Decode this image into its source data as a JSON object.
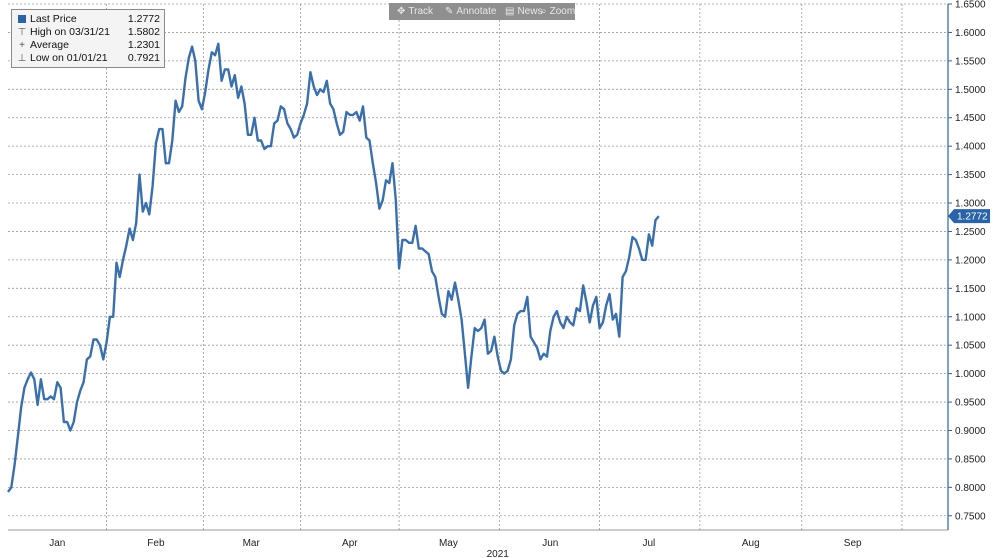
{
  "legend": {
    "items": [
      {
        "icon": "square-icon",
        "name": "Last Price",
        "value": "1.2772"
      },
      {
        "icon": "high-marker-icon",
        "name": "High on 03/31/21",
        "value": "1.5802"
      },
      {
        "icon": "average-marker-icon",
        "name": "Average",
        "value": "1.2301"
      },
      {
        "icon": "low-marker-icon",
        "name": "Low on 01/01/21",
        "value": "0.7921"
      }
    ]
  },
  "toolbar": {
    "items": [
      {
        "icon": "track-icon",
        "label": "Track"
      },
      {
        "icon": "annotate-icon",
        "label": "Annotate"
      },
      {
        "icon": "news-icon",
        "label": "News"
      },
      {
        "icon": "zoom-icon",
        "label": "Zoom"
      }
    ]
  },
  "colors": {
    "line": "#3a6fae",
    "grid": "#9a9a9a",
    "axis": "#2a63a8",
    "label_badge": "#2a63a8"
  },
  "chart_data": {
    "type": "line",
    "title": "",
    "xlabel": "2021",
    "ylabel": "",
    "last_value_label": "1.2772",
    "ylim": [
      0.725,
      1.65
    ],
    "y_ticks": [
      0.75,
      0.8,
      0.85,
      0.9,
      0.95,
      1.0,
      1.05,
      1.1,
      1.15,
      1.2,
      1.25,
      1.3,
      1.35,
      1.4,
      1.45,
      1.5,
      1.55,
      1.6,
      1.65
    ],
    "y_tick_labels": [
      "0.7500",
      "0.8000",
      "0.8500",
      "0.9000",
      "0.9500",
      "1.0000",
      "1.0500",
      "1.1000",
      "1.1500",
      "1.2000",
      "1.2500",
      "1.3000",
      "1.3500",
      "1.4000",
      "1.4500",
      "1.5000",
      "1.5500",
      "1.6000",
      "1.6500"
    ],
    "x_ticks": [
      {
        "label": "Jan",
        "day": 16
      },
      {
        "label": "Feb",
        "day": 46
      },
      {
        "label": "Mar",
        "day": 75
      },
      {
        "label": "Apr",
        "day": 105
      },
      {
        "label": "May",
        "day": 135
      },
      {
        "label": "Jun",
        "day": 166
      },
      {
        "label": "Jul",
        "day": 196
      },
      {
        "label": "Aug",
        "day": 227
      },
      {
        "label": "Sep",
        "day": 258
      }
    ],
    "x_range_days": [
      1,
      287
    ],
    "series": [
      {
        "values": [
          [
            1,
            0.792
          ],
          [
            2,
            0.8
          ],
          [
            3,
            0.84
          ],
          [
            4,
            0.89
          ],
          [
            5,
            0.94
          ],
          [
            6,
            0.975
          ],
          [
            7,
            0.99
          ],
          [
            8,
            1.002
          ],
          [
            9,
            0.99
          ],
          [
            10,
            0.945
          ],
          [
            11,
            0.99
          ],
          [
            12,
            0.955
          ],
          [
            13,
            0.955
          ],
          [
            14,
            0.96
          ],
          [
            15,
            0.955
          ],
          [
            16,
            0.985
          ],
          [
            17,
            0.975
          ],
          [
            18,
            0.915
          ],
          [
            19,
            0.915
          ],
          [
            20,
            0.9
          ],
          [
            21,
            0.915
          ],
          [
            22,
            0.95
          ],
          [
            23,
            0.97
          ],
          [
            24,
            0.985
          ],
          [
            25,
            1.025
          ],
          [
            26,
            1.03
          ],
          [
            27,
            1.06
          ],
          [
            28,
            1.06
          ],
          [
            29,
            1.05
          ],
          [
            30,
            1.025
          ],
          [
            31,
            1.055
          ],
          [
            32,
            1.1
          ],
          [
            33,
            1.1
          ],
          [
            34,
            1.195
          ],
          [
            35,
            1.17
          ],
          [
            36,
            1.2
          ],
          [
            37,
            1.225
          ],
          [
            38,
            1.255
          ],
          [
            39,
            1.235
          ],
          [
            40,
            1.265
          ],
          [
            41,
            1.35
          ],
          [
            42,
            1.285
          ],
          [
            43,
            1.3
          ],
          [
            44,
            1.28
          ],
          [
            45,
            1.33
          ],
          [
            46,
            1.405
          ],
          [
            47,
            1.43
          ],
          [
            48,
            1.43
          ],
          [
            49,
            1.37
          ],
          [
            50,
            1.37
          ],
          [
            51,
            1.41
          ],
          [
            52,
            1.48
          ],
          [
            53,
            1.46
          ],
          [
            54,
            1.47
          ],
          [
            55,
            1.52
          ],
          [
            56,
            1.555
          ],
          [
            57,
            1.575
          ],
          [
            58,
            1.55
          ],
          [
            59,
            1.48
          ],
          [
            60,
            1.465
          ],
          [
            61,
            1.495
          ],
          [
            62,
            1.535
          ],
          [
            63,
            1.565
          ],
          [
            64,
            1.56
          ],
          [
            65,
            1.58
          ],
          [
            66,
            1.515
          ],
          [
            67,
            1.535
          ],
          [
            68,
            1.535
          ],
          [
            69,
            1.505
          ],
          [
            70,
            1.525
          ],
          [
            71,
            1.485
          ],
          [
            72,
            1.505
          ],
          [
            73,
            1.475
          ],
          [
            74,
            1.42
          ],
          [
            75,
            1.42
          ],
          [
            76,
            1.45
          ],
          [
            77,
            1.41
          ],
          [
            78,
            1.41
          ],
          [
            79,
            1.395
          ],
          [
            80,
            1.4
          ],
          [
            81,
            1.4
          ],
          [
            82,
            1.44
          ],
          [
            83,
            1.445
          ],
          [
            84,
            1.47
          ],
          [
            85,
            1.465
          ],
          [
            86,
            1.44
          ],
          [
            87,
            1.43
          ],
          [
            88,
            1.415
          ],
          [
            89,
            1.42
          ],
          [
            90,
            1.44
          ],
          [
            91,
            1.455
          ],
          [
            92,
            1.475
          ],
          [
            93,
            1.53
          ],
          [
            94,
            1.505
          ],
          [
            95,
            1.49
          ],
          [
            96,
            1.5
          ],
          [
            97,
            1.495
          ],
          [
            98,
            1.515
          ],
          [
            99,
            1.475
          ],
          [
            100,
            1.465
          ],
          [
            101,
            1.44
          ],
          [
            102,
            1.42
          ],
          [
            103,
            1.425
          ],
          [
            104,
            1.46
          ],
          [
            105,
            1.455
          ],
          [
            106,
            1.455
          ],
          [
            107,
            1.46
          ],
          [
            108,
            1.445
          ],
          [
            109,
            1.47
          ],
          [
            110,
            1.415
          ],
          [
            111,
            1.41
          ],
          [
            112,
            1.37
          ],
          [
            113,
            1.335
          ],
          [
            114,
            1.29
          ],
          [
            115,
            1.305
          ],
          [
            116,
            1.34
          ],
          [
            117,
            1.335
          ],
          [
            118,
            1.37
          ],
          [
            119,
            1.305
          ],
          [
            120,
            1.185
          ],
          [
            121,
            1.235
          ],
          [
            122,
            1.235
          ],
          [
            123,
            1.23
          ],
          [
            124,
            1.23
          ],
          [
            125,
            1.26
          ],
          [
            126,
            1.22
          ],
          [
            127,
            1.22
          ],
          [
            128,
            1.215
          ],
          [
            129,
            1.21
          ],
          [
            130,
            1.18
          ],
          [
            131,
            1.17
          ],
          [
            132,
            1.135
          ],
          [
            133,
            1.105
          ],
          [
            134,
            1.1
          ],
          [
            135,
            1.145
          ],
          [
            136,
            1.13
          ],
          [
            137,
            1.16
          ],
          [
            138,
            1.13
          ],
          [
            139,
            1.095
          ],
          [
            140,
            1.035
          ],
          [
            141,
            0.975
          ],
          [
            142,
            1.03
          ],
          [
            143,
            1.08
          ],
          [
            144,
            1.075
          ],
          [
            145,
            1.08
          ],
          [
            146,
            1.095
          ],
          [
            147,
            1.035
          ],
          [
            148,
            1.04
          ],
          [
            149,
            1.065
          ],
          [
            150,
            1.03
          ],
          [
            151,
            1.005
          ],
          [
            152,
            1.0
          ],
          [
            153,
            1.005
          ],
          [
            154,
            1.025
          ],
          [
            155,
            1.085
          ],
          [
            156,
            1.105
          ],
          [
            157,
            1.11
          ],
          [
            158,
            1.11
          ],
          [
            159,
            1.135
          ],
          [
            160,
            1.065
          ],
          [
            161,
            1.055
          ],
          [
            162,
            1.045
          ],
          [
            163,
            1.025
          ],
          [
            164,
            1.035
          ],
          [
            165,
            1.03
          ],
          [
            166,
            1.075
          ],
          [
            167,
            1.1
          ],
          [
            168,
            1.11
          ],
          [
            169,
            1.09
          ],
          [
            170,
            1.08
          ],
          [
            171,
            1.1
          ],
          [
            172,
            1.09
          ],
          [
            173,
            1.085
          ],
          [
            174,
            1.115
          ],
          [
            175,
            1.11
          ],
          [
            176,
            1.155
          ],
          [
            177,
            1.125
          ],
          [
            178,
            1.09
          ],
          [
            179,
            1.12
          ],
          [
            180,
            1.135
          ],
          [
            181,
            1.08
          ],
          [
            182,
            1.09
          ],
          [
            183,
            1.12
          ],
          [
            184,
            1.14
          ],
          [
            185,
            1.095
          ],
          [
            186,
            1.105
          ],
          [
            187,
            1.065
          ],
          [
            188,
            1.17
          ],
          [
            189,
            1.18
          ],
          [
            190,
            1.205
          ],
          [
            191,
            1.24
          ],
          [
            192,
            1.235
          ],
          [
            193,
            1.22
          ],
          [
            194,
            1.2
          ],
          [
            195,
            1.2
          ],
          [
            196,
            1.245
          ],
          [
            197,
            1.225
          ],
          [
            198,
            1.27
          ],
          [
            199,
            1.277
          ]
        ]
      }
    ]
  }
}
